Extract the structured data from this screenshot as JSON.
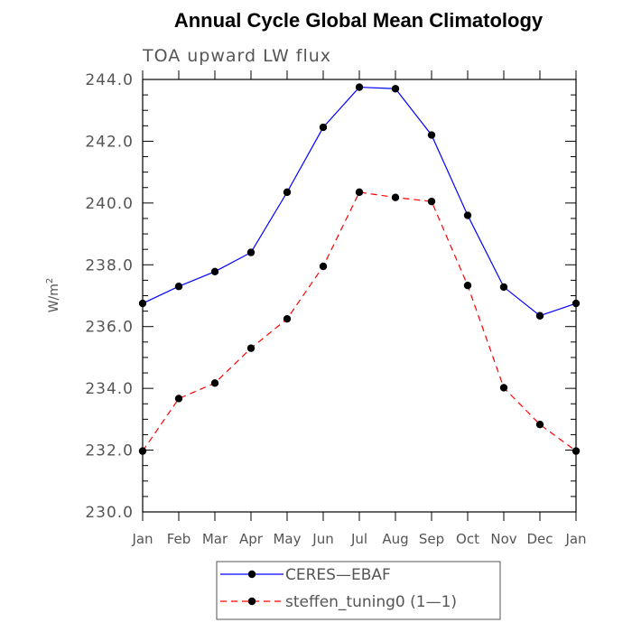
{
  "chart_data": {
    "type": "line",
    "title": "Annual Cycle Global Mean Climatology",
    "subtitle": "TOA upward LW flux",
    "ylabel": "W/m",
    "ylabel_superscript": "2",
    "xlabel": "",
    "x": [
      "Jan",
      "Feb",
      "Mar",
      "Apr",
      "May",
      "Jun",
      "Jul",
      "Aug",
      "Sep",
      "Oct",
      "Nov",
      "Dec",
      "Jan"
    ],
    "ylim": [
      230.0,
      244.0
    ],
    "yticks": [
      "230.0",
      "232.0",
      "234.0",
      "236.0",
      "238.0",
      "240.0",
      "242.0",
      "244.0"
    ],
    "series": [
      {
        "name": "CERES—EBAF",
        "color": "#0000ff",
        "line_style": "solid",
        "values": [
          236.75,
          237.3,
          237.78,
          238.4,
          240.35,
          242.45,
          243.75,
          243.7,
          242.2,
          239.6,
          237.28,
          236.35,
          236.75
        ]
      },
      {
        "name": "steffen_tuning0 (1—1)",
        "color": "#ff0000",
        "line_style": "dashed",
        "values": [
          231.97,
          233.67,
          234.17,
          235.3,
          236.25,
          237.95,
          240.35,
          240.18,
          240.05,
          237.33,
          234.02,
          232.83,
          231.97
        ]
      }
    ],
    "marker_color": "#000000",
    "legend_position": "bottom-center",
    "grid": false
  }
}
